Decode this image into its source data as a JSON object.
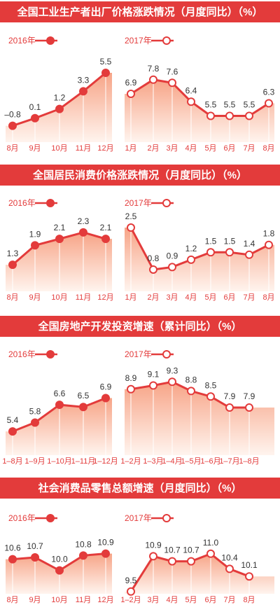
{
  "chart_data": [
    {
      "type": "line",
      "title": "全国工业生产者出厂价格涨跌情况（月度同比）（%）",
      "series": [
        {
          "name": "2016年",
          "categories": [
            "8月",
            "9月",
            "10月",
            "11月",
            "12月"
          ],
          "values": [
            -0.8,
            0.1,
            1.2,
            3.3,
            5.5
          ],
          "labels": [
            "–0.8",
            "0.1",
            "1.2",
            "3.3",
            "5.5"
          ],
          "ylim": [
            -1.5,
            6
          ]
        },
        {
          "name": "2017年",
          "categories": [
            "1月",
            "2月",
            "3月",
            "4月",
            "5月",
            "6月",
            "7月",
            "8月"
          ],
          "values": [
            6.9,
            7.8,
            7.6,
            6.4,
            5.5,
            5.5,
            5.5,
            6.3
          ],
          "labels": [
            "6.9",
            "7.8",
            "7.6",
            "6.4",
            "5.5",
            "5.5",
            "5.5",
            "6.3"
          ],
          "ylim": [
            4.5,
            8.5
          ]
        }
      ]
    },
    {
      "type": "line",
      "title": "全国居民消费价格涨跌情况（月度同比）（%）",
      "series": [
        {
          "name": "2016年",
          "categories": [
            "8月",
            "9月",
            "10月",
            "11月",
            "12月"
          ],
          "values": [
            1.3,
            1.9,
            2.1,
            2.3,
            2.1
          ],
          "labels": [
            "1.3",
            "1.9",
            "2.1",
            "2.3",
            "2.1"
          ],
          "ylim": [
            1.0,
            2.6
          ]
        },
        {
          "name": "2017年",
          "categories": [
            "1月",
            "2月",
            "3月",
            "4月",
            "5月",
            "6月",
            "7月",
            "8月"
          ],
          "values": [
            2.5,
            0.8,
            0.9,
            1.2,
            1.5,
            1.5,
            1.4,
            1.8
          ],
          "labels": [
            "2.5",
            "0.8",
            "0.9",
            "1.2",
            "1.5",
            "1.5",
            "1.4",
            "1.8"
          ],
          "ylim": [
            0.6,
            2.7
          ]
        }
      ]
    },
    {
      "type": "line",
      "title": "全国房地产开发投资增速（累计同比）（%）",
      "series": [
        {
          "name": "2016年",
          "categories": [
            "1–8月",
            "1–9月",
            "1–10月",
            "1–11月",
            "1–12月"
          ],
          "values": [
            5.4,
            5.8,
            6.6,
            6.5,
            6.9
          ],
          "labels": [
            "5.4",
            "5.8",
            "6.6",
            "6.5",
            "6.9"
          ],
          "ylim": [
            4.9,
            7.8
          ]
        },
        {
          "name": "2017年",
          "categories": [
            "1–2月",
            "1–3月",
            "1–4月",
            "1–5月",
            "1–6月",
            "1–7月",
            "1–8月"
          ],
          "values": [
            8.9,
            9.1,
            9.3,
            8.8,
            8.5,
            7.9,
            7.9
          ],
          "labels": [
            "8.9",
            "9.1",
            "9.3",
            "8.8",
            "8.5",
            "7.9",
            "7.9"
          ],
          "ylim": [
            6.0,
            9.5
          ]
        }
      ]
    },
    {
      "type": "line",
      "title": "社会消费品零售总额增速（月度同比）（%）",
      "series": [
        {
          "name": "2016年",
          "categories": [
            "8月",
            "9月",
            "10月",
            "11月",
            "12月"
          ],
          "values": [
            10.6,
            10.7,
            10.0,
            10.8,
            10.9
          ],
          "labels": [
            "10.6",
            "10.7",
            "10.0",
            "10.8",
            "10.9"
          ],
          "ylim": [
            8.6,
            11.3
          ]
        },
        {
          "name": "2017年",
          "categories": [
            "1–2月",
            "3月",
            "4月",
            "5月",
            "6月",
            "7月",
            "8月"
          ],
          "values": [
            9.5,
            10.9,
            10.7,
            10.7,
            11.0,
            10.4,
            10.1
          ],
          "labels": [
            "9.5",
            "10.9",
            "10.7",
            "10.7",
            "11.0",
            "10.4",
            "10.1"
          ],
          "ylim": [
            9.3,
            11.3
          ]
        }
      ]
    }
  ],
  "colors": {
    "accent": "#e33b3b",
    "fill_top": "#f7a487",
    "fill_bottom": "#fff4ee"
  }
}
